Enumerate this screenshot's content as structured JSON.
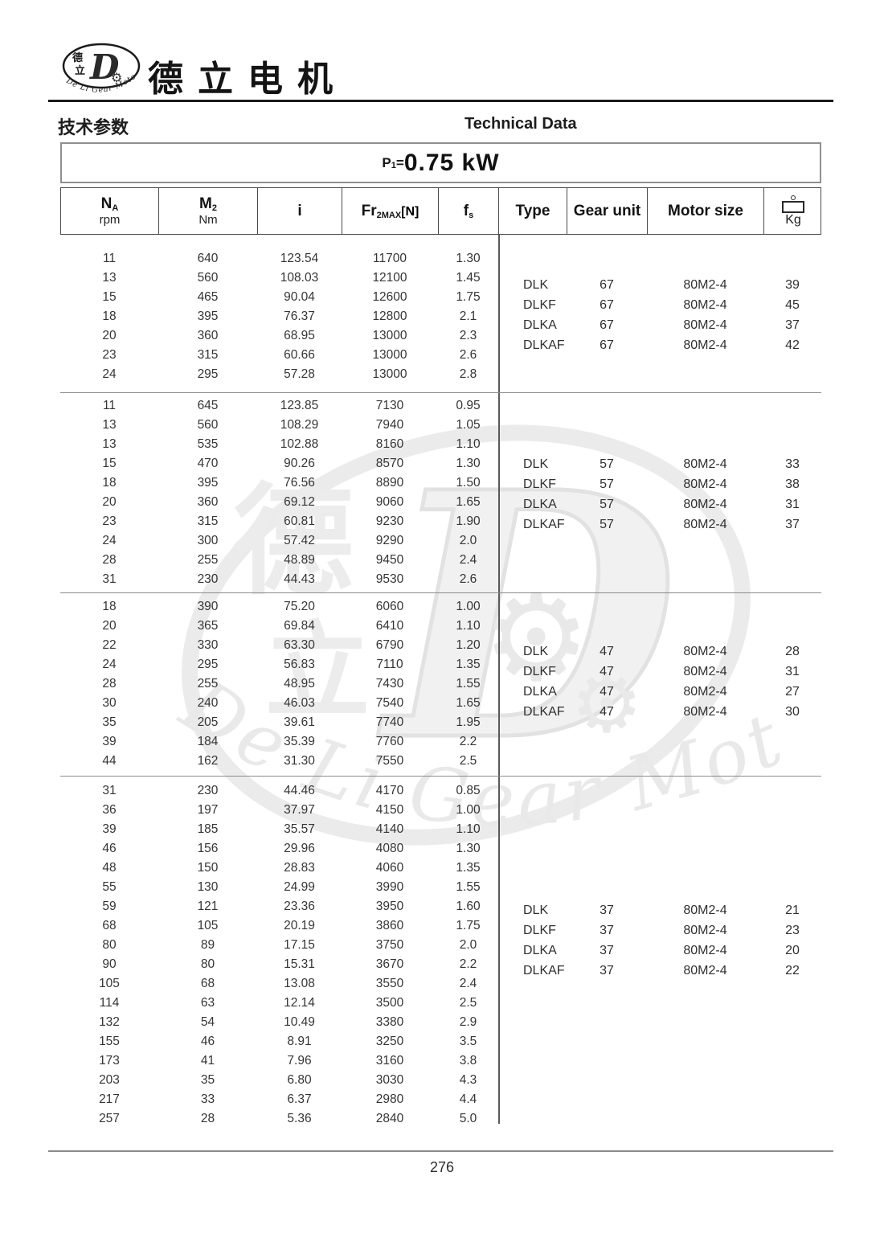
{
  "logo": {
    "cn_top": "德",
    "cn_bottom": "立",
    "letter": "D",
    "gear_icon": "⚙",
    "en_arc": "De Li Gear Motor"
  },
  "brand_title": "德立电机",
  "section": {
    "cn": "技术参数",
    "en": "Technical Data"
  },
  "power": {
    "p": "P",
    "sub": "1",
    "eq": "=",
    "value": "0.75 kW"
  },
  "table": {
    "columns": [
      {
        "main": "N",
        "sub": "A",
        "unit": "rpm"
      },
      {
        "main": "M",
        "sub": "2",
        "unit": "Nm"
      },
      {
        "main": "i"
      },
      {
        "main": "Fr",
        "sub": "2MAX",
        "tail": "[N]"
      },
      {
        "main": "f",
        "sub": "s"
      },
      {
        "main": "Type"
      },
      {
        "main": "Gear unit"
      },
      {
        "main": "Motor size"
      },
      {
        "main": "Kg",
        "icon": "weight-icon"
      }
    ],
    "blocks": [
      {
        "rows": [
          [
            "11",
            "640",
            "123.54",
            "11700",
            "1.30"
          ],
          [
            "13",
            "560",
            "108.03",
            "12100",
            "1.45"
          ],
          [
            "15",
            "465",
            "90.04",
            "12600",
            "1.75"
          ],
          [
            "18",
            "395",
            "76.37",
            "12800",
            "2.1"
          ],
          [
            "20",
            "360",
            "68.95",
            "13000",
            "2.3"
          ],
          [
            "23",
            "315",
            "60.66",
            "13000",
            "2.6"
          ],
          [
            "24",
            "295",
            "57.28",
            "13000",
            "2.8"
          ]
        ],
        "types": [
          {
            "type": "DLK",
            "gear_unit": "67",
            "motor_size": "80M2-4",
            "kg": "39"
          },
          {
            "type": "DLKF",
            "gear_unit": "67",
            "motor_size": "80M2-4",
            "kg": "45"
          },
          {
            "type": "DLKA",
            "gear_unit": "67",
            "motor_size": "80M2-4",
            "kg": "37"
          },
          {
            "type": "DLKAF",
            "gear_unit": "67",
            "motor_size": "80M2-4",
            "kg": "42"
          }
        ]
      },
      {
        "rows": [
          [
            "11",
            "645",
            "123.85",
            "7130",
            "0.95"
          ],
          [
            "13",
            "560",
            "108.29",
            "7940",
            "1.05"
          ],
          [
            "13",
            "535",
            "102.88",
            "8160",
            "1.10"
          ],
          [
            "15",
            "470",
            "90.26",
            "8570",
            "1.30"
          ],
          [
            "18",
            "395",
            "76.56",
            "8890",
            "1.50"
          ],
          [
            "20",
            "360",
            "69.12",
            "9060",
            "1.65"
          ],
          [
            "23",
            "315",
            "60.81",
            "9230",
            "1.90"
          ],
          [
            "24",
            "300",
            "57.42",
            "9290",
            "2.0"
          ],
          [
            "28",
            "255",
            "48.89",
            "9450",
            "2.4"
          ],
          [
            "31",
            "230",
            "44.43",
            "9530",
            "2.6"
          ]
        ],
        "types": [
          {
            "type": "DLK",
            "gear_unit": "57",
            "motor_size": "80M2-4",
            "kg": "33"
          },
          {
            "type": "DLKF",
            "gear_unit": "57",
            "motor_size": "80M2-4",
            "kg": "38"
          },
          {
            "type": "DLKA",
            "gear_unit": "57",
            "motor_size": "80M2-4",
            "kg": "31"
          },
          {
            "type": "DLKAF",
            "gear_unit": "57",
            "motor_size": "80M2-4",
            "kg": "37"
          }
        ]
      },
      {
        "rows": [
          [
            "18",
            "390",
            "75.20",
            "6060",
            "1.00"
          ],
          [
            "20",
            "365",
            "69.84",
            "6410",
            "1.10"
          ],
          [
            "22",
            "330",
            "63.30",
            "6790",
            "1.20"
          ],
          [
            "24",
            "295",
            "56.83",
            "7110",
            "1.35"
          ],
          [
            "28",
            "255",
            "48.95",
            "7430",
            "1.55"
          ],
          [
            "30",
            "240",
            "46.03",
            "7540",
            "1.65"
          ],
          [
            "35",
            "205",
            "39.61",
            "7740",
            "1.95"
          ],
          [
            "39",
            "184",
            "35.39",
            "7760",
            "2.2"
          ],
          [
            "44",
            "162",
            "31.30",
            "7550",
            "2.5"
          ]
        ],
        "types": [
          {
            "type": "DLK",
            "gear_unit": "47",
            "motor_size": "80M2-4",
            "kg": "28"
          },
          {
            "type": "DLKF",
            "gear_unit": "47",
            "motor_size": "80M2-4",
            "kg": "31"
          },
          {
            "type": "DLKA",
            "gear_unit": "47",
            "motor_size": "80M2-4",
            "kg": "27"
          },
          {
            "type": "DLKAF",
            "gear_unit": "47",
            "motor_size": "80M2-4",
            "kg": "30"
          }
        ]
      },
      {
        "rows": [
          [
            "31",
            "230",
            "44.46",
            "4170",
            "0.85"
          ],
          [
            "36",
            "197",
            "37.97",
            "4150",
            "1.00"
          ],
          [
            "39",
            "185",
            "35.57",
            "4140",
            "1.10"
          ],
          [
            "46",
            "156",
            "29.96",
            "4080",
            "1.30"
          ],
          [
            "48",
            "150",
            "28.83",
            "4060",
            "1.35"
          ],
          [
            "55",
            "130",
            "24.99",
            "3990",
            "1.55"
          ],
          [
            "59",
            "121",
            "23.36",
            "3950",
            "1.60"
          ],
          [
            "68",
            "105",
            "20.19",
            "3860",
            "1.75"
          ],
          [
            "80",
            "89",
            "17.15",
            "3750",
            "2.0"
          ],
          [
            "90",
            "80",
            "15.31",
            "3670",
            "2.2"
          ],
          [
            "105",
            "68",
            "13.08",
            "3550",
            "2.4"
          ],
          [
            "114",
            "63",
            "12.14",
            "3500",
            "2.5"
          ],
          [
            "132",
            "54",
            "10.49",
            "3380",
            "2.9"
          ],
          [
            "155",
            "46",
            "8.91",
            "3250",
            "3.5"
          ],
          [
            "173",
            "41",
            "7.96",
            "3160",
            "3.8"
          ],
          [
            "203",
            "35",
            "6.80",
            "3030",
            "4.3"
          ],
          [
            "217",
            "33",
            "6.37",
            "2980",
            "4.4"
          ],
          [
            "257",
            "28",
            "5.36",
            "2840",
            "5.0"
          ]
        ],
        "types": [
          {
            "type": "DLK",
            "gear_unit": "37",
            "motor_size": "80M2-4",
            "kg": "21"
          },
          {
            "type": "DLKF",
            "gear_unit": "37",
            "motor_size": "80M2-4",
            "kg": "23"
          },
          {
            "type": "DLKA",
            "gear_unit": "37",
            "motor_size": "80M2-4",
            "kg": "20"
          },
          {
            "type": "DLKAF",
            "gear_unit": "37",
            "motor_size": "80M2-4",
            "kg": "22"
          }
        ]
      }
    ]
  },
  "watermark": {
    "letter": "D",
    "cn_top": "德",
    "cn_bottom": "立",
    "gear_icon": "⚙",
    "en": "De Li Gear Motor"
  },
  "footer": {
    "page": "276"
  }
}
